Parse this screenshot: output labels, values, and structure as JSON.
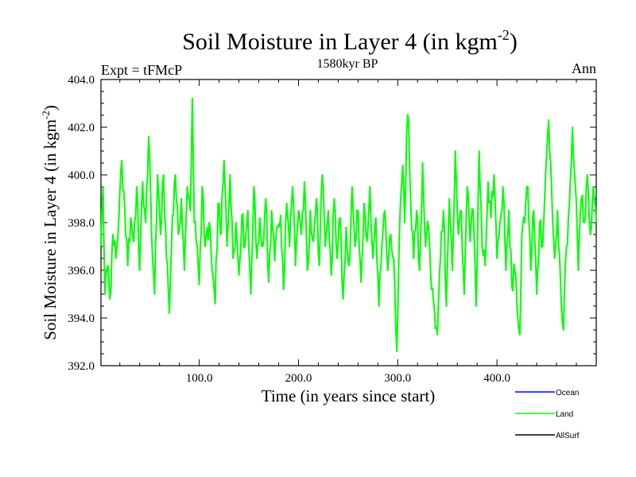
{
  "chart_data": {
    "type": "line",
    "title": "Soil Moisture in Layer 4 (in kgm",
    "title_sup": "-2",
    "title_close": ")",
    "subtitle": "1580kyr BP",
    "left_label": "Expt = tFMcP",
    "right_label": "Ann",
    "xlabel": "Time (in years since start)",
    "ylabel": "Soil Moisture in Layer 4 (in kgm",
    "ylabel_sup": "-2",
    "ylabel_close": ")",
    "xlim": [
      1,
      500
    ],
    "ylim": [
      392,
      404
    ],
    "xticks": [
      100,
      200,
      300,
      400
    ],
    "xtick_labels": [
      "100.0",
      "200.0",
      "300.0",
      "400.0"
    ],
    "yticks": [
      392,
      394,
      396,
      398,
      400,
      402,
      404
    ],
    "ytick_labels": [
      "392.0",
      "394.0",
      "396.0",
      "398.0",
      "400.0",
      "402.0",
      "404.0"
    ],
    "legend": [
      {
        "name": "Ocean",
        "color": "#0000ff"
      },
      {
        "name": "Land",
        "color": "#00ff00"
      },
      {
        "name": "AllSurf",
        "color": "#000000"
      }
    ],
    "legend_position": "bottom-right",
    "series": [
      {
        "name": "Land",
        "color": "#00ff00",
        "keypoints": [
          [
            1,
            397
          ],
          [
            3,
            399.5
          ],
          [
            5,
            395
          ],
          [
            8,
            396.2
          ],
          [
            10,
            394.8
          ],
          [
            13,
            397.5
          ],
          [
            16,
            396.5
          ],
          [
            19,
            398.2
          ],
          [
            22,
            400.6
          ],
          [
            25,
            398.5
          ],
          [
            28,
            396.2
          ],
          [
            31,
            398.2
          ],
          [
            34,
            397.2
          ],
          [
            37,
            399.5
          ],
          [
            40,
            396
          ],
          [
            43,
            399.7
          ],
          [
            46,
            398
          ],
          [
            49,
            401.6
          ],
          [
            52,
            397.5
          ],
          [
            55,
            395
          ],
          [
            58,
            400
          ],
          [
            61,
            397.5
          ],
          [
            64,
            400
          ],
          [
            67,
            396.5
          ],
          [
            70,
            394.2
          ],
          [
            73,
            398.3
          ],
          [
            76,
            400
          ],
          [
            79,
            397.5
          ],
          [
            82,
            399
          ],
          [
            85,
            396
          ],
          [
            88,
            399.5
          ],
          [
            91,
            398.5
          ],
          [
            93,
            403.2
          ],
          [
            95,
            398
          ],
          [
            98,
            397
          ],
          [
            100,
            395.4
          ],
          [
            103,
            399.5
          ],
          [
            106,
            397
          ],
          [
            110,
            398
          ],
          [
            113,
            396
          ],
          [
            116,
            394.6
          ],
          [
            119,
            398.8
          ],
          [
            122,
            397.5
          ],
          [
            125,
            400.6
          ],
          [
            128,
            397
          ],
          [
            131,
            400
          ],
          [
            134,
            396.5
          ],
          [
            137,
            398
          ],
          [
            140,
            395.8
          ],
          [
            143,
            398.3
          ],
          [
            146,
            397
          ],
          [
            149,
            398.5
          ],
          [
            152,
            395
          ],
          [
            155,
            399.5
          ],
          [
            158,
            396.5
          ],
          [
            161,
            398.2
          ],
          [
            164,
            397
          ],
          [
            167,
            399
          ],
          [
            170,
            395.5
          ],
          [
            173,
            398.5
          ],
          [
            176,
            396.4
          ],
          [
            179,
            397.8
          ],
          [
            182,
            398.3
          ],
          [
            185,
            395.2
          ],
          [
            188,
            398.8
          ],
          [
            191,
            397
          ],
          [
            194,
            399.5
          ],
          [
            197,
            396.2
          ],
          [
            200,
            398.5
          ],
          [
            203,
            397.5
          ],
          [
            206,
            399.7
          ],
          [
            209,
            396
          ],
          [
            212,
            398.5
          ],
          [
            215,
            397.2
          ],
          [
            218,
            399
          ],
          [
            221,
            396.2
          ],
          [
            224,
            400
          ],
          [
            227,
            397
          ],
          [
            230,
            398.5
          ],
          [
            233,
            395.8
          ],
          [
            236,
            399
          ],
          [
            239,
            396.5
          ],
          [
            242,
            398.2
          ],
          [
            245,
            394.8
          ],
          [
            248,
            397.8
          ],
          [
            251,
            396.2
          ],
          [
            254,
            399.5
          ],
          [
            257,
            397
          ],
          [
            260,
            398.5
          ],
          [
            263,
            395.5
          ],
          [
            266,
            398.8
          ],
          [
            269,
            397.2
          ],
          [
            272,
            399.5
          ],
          [
            275,
            396.5
          ],
          [
            278,
            398.2
          ],
          [
            281,
            394.5
          ],
          [
            284,
            397
          ],
          [
            287,
            398.5
          ],
          [
            290,
            396
          ],
          [
            293,
            397.5
          ],
          [
            296,
            396.5
          ],
          [
            299,
            392.6
          ],
          [
            302,
            398
          ],
          [
            305,
            400.4
          ],
          [
            307,
            398
          ],
          [
            309,
            401.8
          ],
          [
            311,
            402.3
          ],
          [
            313,
            399
          ],
          [
            316,
            396.5
          ],
          [
            319,
            398.5
          ],
          [
            322,
            396
          ],
          [
            325,
            400.5
          ],
          [
            328,
            397
          ],
          [
            331,
            397.8
          ],
          [
            334,
            395.2
          ],
          [
            337,
            394.3
          ],
          [
            340,
            393.3
          ],
          [
            343,
            396.5
          ],
          [
            346,
            398.5
          ],
          [
            349,
            394.5
          ],
          [
            352,
            399
          ],
          [
            355,
            396
          ],
          [
            358,
            401
          ],
          [
            361,
            397.5
          ],
          [
            364,
            398.5
          ],
          [
            367,
            395
          ],
          [
            370,
            399.5
          ],
          [
            373,
            397.2
          ],
          [
            376,
            398.5
          ],
          [
            379,
            394.5
          ],
          [
            382,
            401
          ],
          [
            385,
            397
          ],
          [
            388,
            396.2
          ],
          [
            391,
            399.7
          ],
          [
            394,
            398.2
          ],
          [
            397,
            400
          ],
          [
            400,
            396.5
          ],
          [
            403,
            398
          ],
          [
            406,
            399.5
          ],
          [
            409,
            396
          ],
          [
            412,
            398.5
          ],
          [
            415,
            395.3
          ],
          [
            418,
            396
          ],
          [
            421,
            394
          ],
          [
            423,
            393.3
          ],
          [
            425,
            397.5
          ],
          [
            428,
            398
          ],
          [
            431,
            399.5
          ],
          [
            434,
            396
          ],
          [
            437,
            398.5
          ],
          [
            440,
            395
          ],
          [
            443,
            398
          ],
          [
            446,
            397
          ],
          [
            449,
            400
          ],
          [
            452,
            402.3
          ],
          [
            455,
            399.5
          ],
          [
            458,
            396.5
          ],
          [
            461,
            398.5
          ],
          [
            464,
            395.5
          ],
          [
            467,
            393.5
          ],
          [
            470,
            397
          ],
          [
            473,
            398.8
          ],
          [
            476,
            402
          ],
          [
            479,
            399.5
          ],
          [
            482,
            396
          ],
          [
            485,
            399
          ],
          [
            488,
            398
          ],
          [
            491,
            400
          ],
          [
            494,
            397.5
          ],
          [
            497,
            399.5
          ],
          [
            500,
            398
          ]
        ]
      }
    ]
  }
}
